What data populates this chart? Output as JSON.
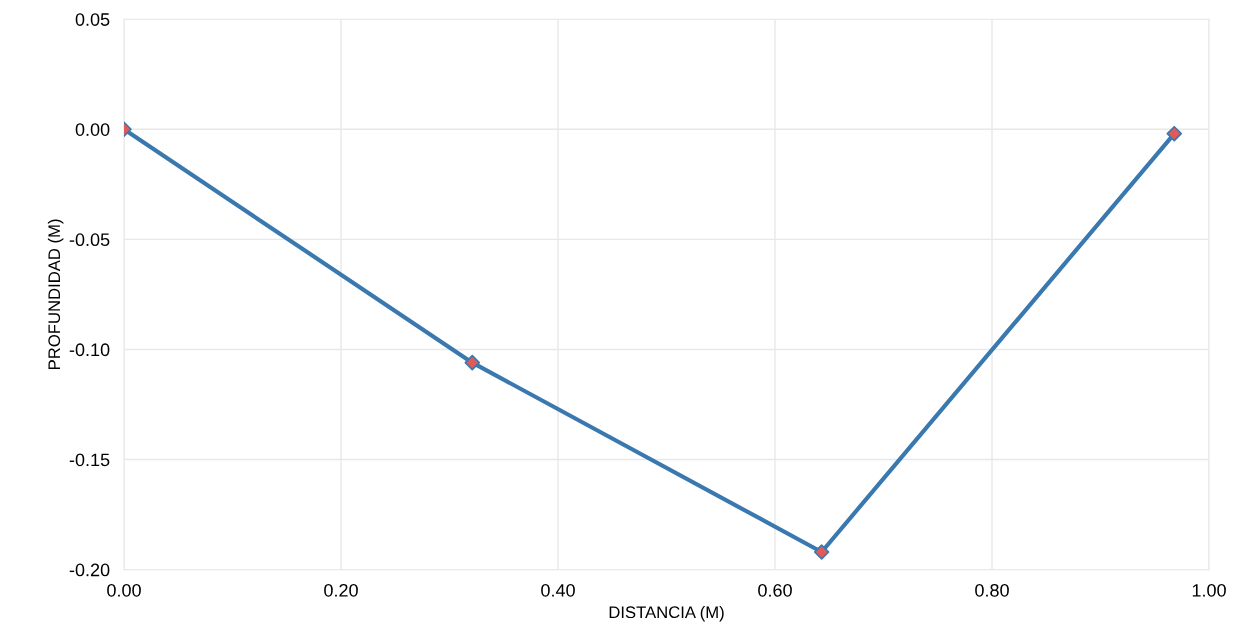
{
  "chart_data": {
    "type": "line",
    "xlabel": "DISTANCIA (M)",
    "ylabel": "PROFUNDIDAD (M)",
    "x": [
      0.0,
      0.321,
      0.643,
      0.968
    ],
    "series": [
      {
        "color": "#3a78b0",
        "colors": [
          "#e05a5a",
          "#e05a5a",
          "#e05a5a",
          "#e05a5a"
        ],
        "values": [
          0.0,
          -0.106,
          -0.192,
          -0.002
        ]
      }
    ],
    "xlim": [
      0,
      1
    ],
    "xticks": [
      {
        "value": 0,
        "label": "0.00"
      },
      {
        "value": 0.2,
        "label": "0.20"
      },
      {
        "value": 0.4,
        "label": "0.40"
      },
      {
        "value": 0.6,
        "label": "0.60"
      },
      {
        "value": 0.8,
        "label": "0.80"
      },
      {
        "value": 1,
        "label": "1.00"
      }
    ],
    "ylim": [
      -0.2,
      0.05
    ],
    "yticks": [
      {
        "value": -0.2,
        "label": "-0.20"
      },
      {
        "value": -0.15,
        "label": "-0.15"
      },
      {
        "value": -0.1,
        "label": "-0.10"
      },
      {
        "value": -0.05,
        "label": "-0.05"
      },
      {
        "value": 0,
        "label": "0.00"
      },
      {
        "value": 0.05,
        "label": "0.05"
      }
    ],
    "grid": true,
    "marker": "diamond",
    "line_style": "solid"
  }
}
